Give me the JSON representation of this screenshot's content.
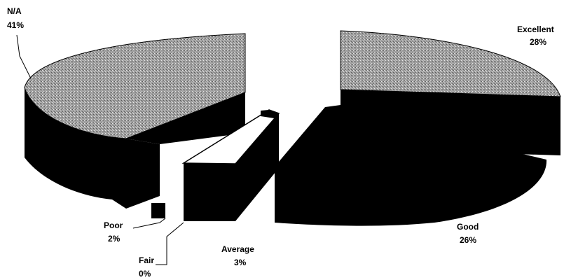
{
  "chart_data": {
    "type": "pie",
    "title": "",
    "categories": [
      "Excellent",
      "Good",
      "Average",
      "Fair",
      "Poor",
      "N/A"
    ],
    "values": [
      28,
      26,
      3,
      0,
      2,
      41
    ],
    "value_labels": [
      "28%",
      "26%",
      "3%",
      "0%",
      "2%",
      "41%"
    ],
    "colors": {
      "top_patterned": "#a8a8a8",
      "side": "#000000",
      "average_top": "#ffffff",
      "background": "#ffffff"
    },
    "style": "3d-exploded",
    "legend": "none"
  }
}
